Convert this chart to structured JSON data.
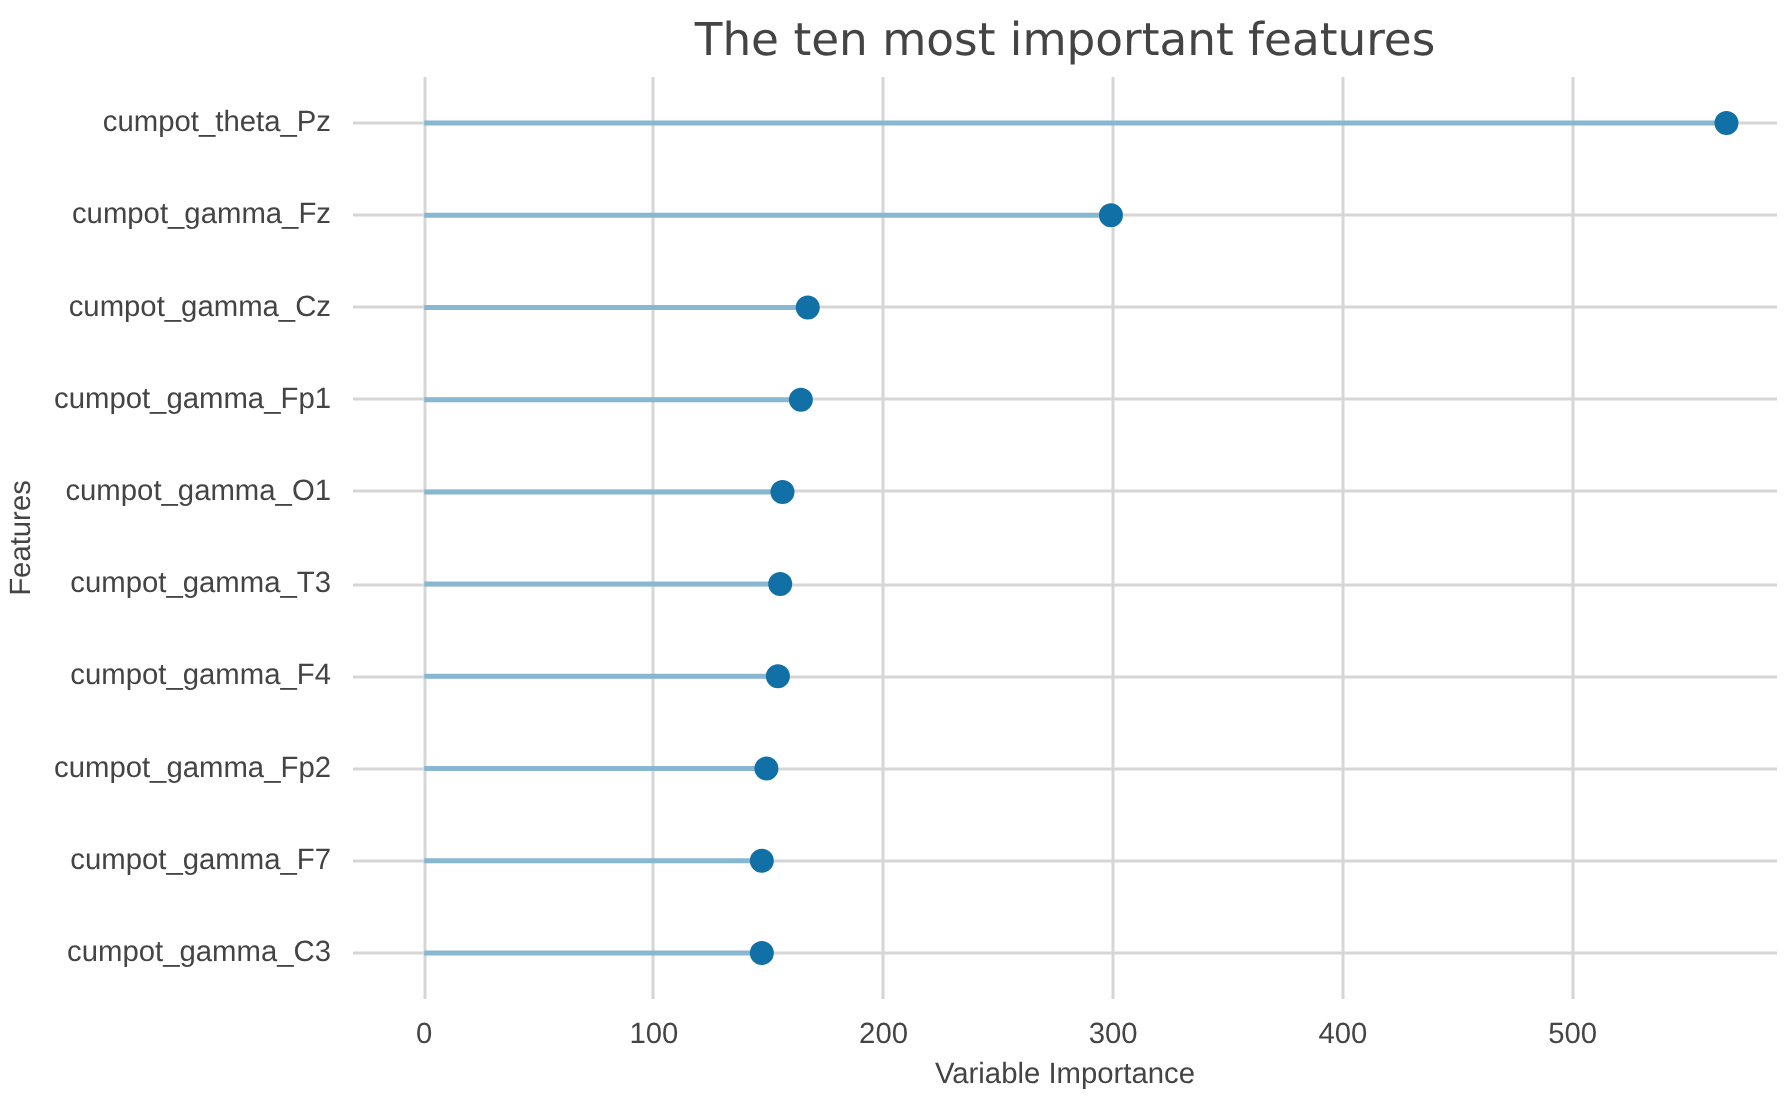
{
  "chart_data": {
    "type": "lollipop",
    "orientation": "horizontal",
    "title": "The ten most important features",
    "xlabel": "Variable Importance",
    "ylabel": "Features",
    "categories": [
      "cumpot_theta_Pz",
      "cumpot_gamma_Fz",
      "cumpot_gamma_Cz",
      "cumpot_gamma_Fp1",
      "cumpot_gamma_O1",
      "cumpot_gamma_T3",
      "cumpot_gamma_F4",
      "cumpot_gamma_Fp2",
      "cumpot_gamma_F7",
      "cumpot_gamma_C3"
    ],
    "series": [
      {
        "color": "#1170a5",
        "values": [
          567,
          299,
          167,
          164,
          156,
          155,
          154,
          149,
          147,
          147
        ]
      }
    ],
    "xlim": [
      -31,
      589
    ],
    "xticks": [
      0,
      100,
      200,
      300,
      400,
      500
    ],
    "grid": true,
    "marker": "circle"
  }
}
